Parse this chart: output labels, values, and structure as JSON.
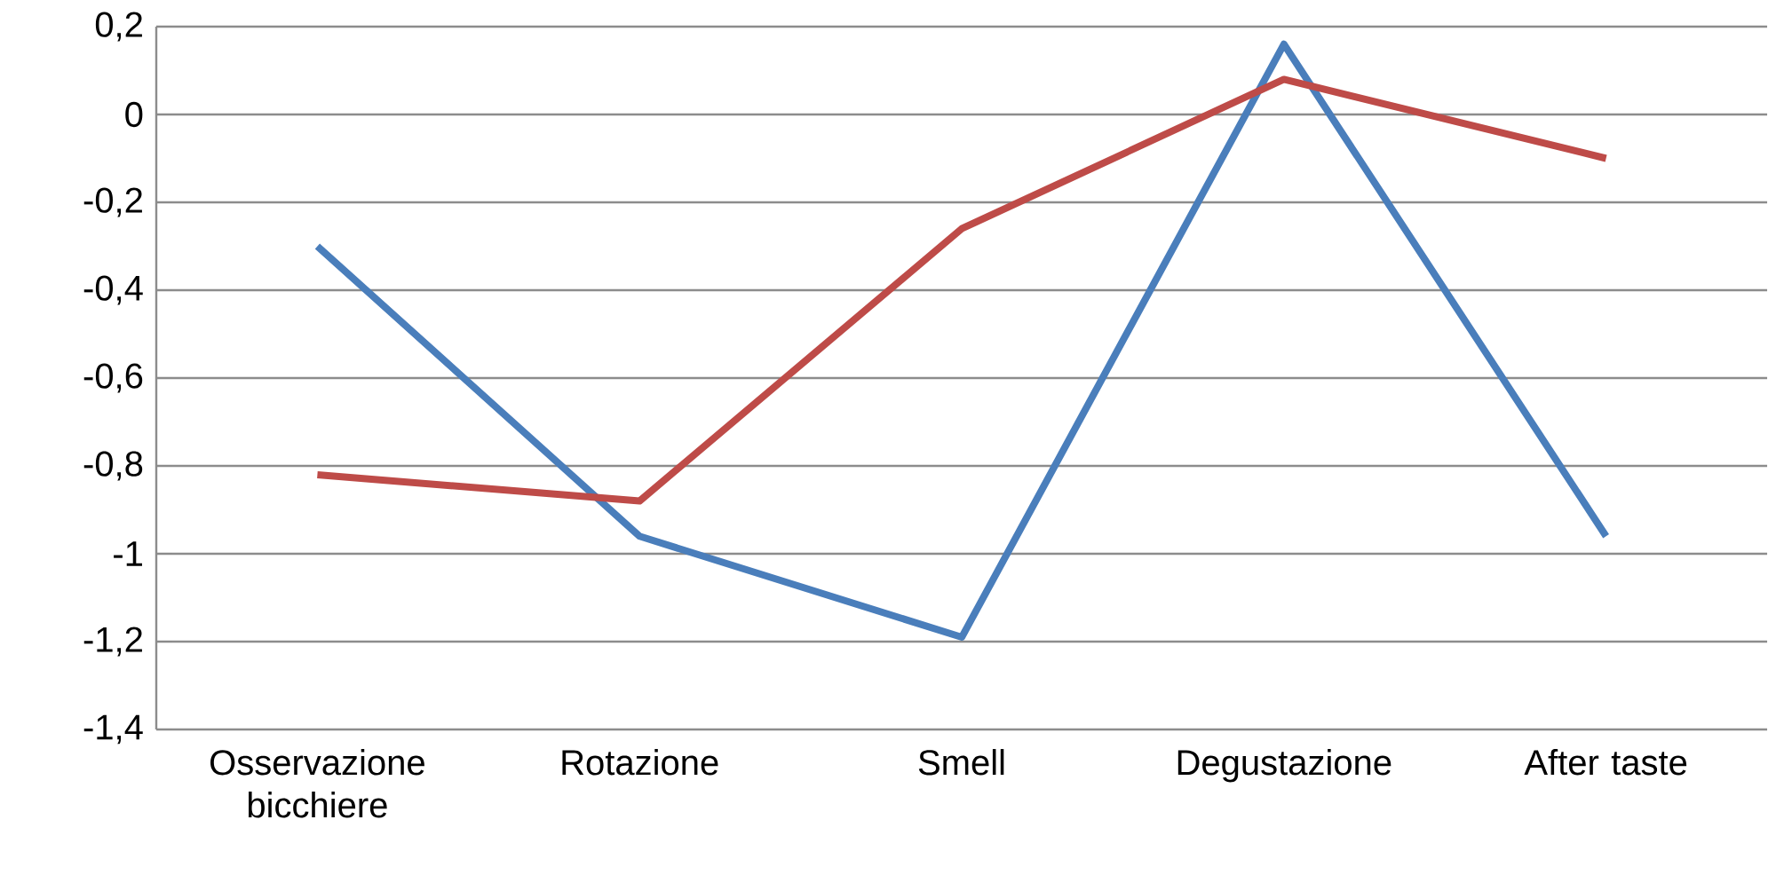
{
  "chart_data": {
    "type": "line",
    "categories": [
      "Osservazione bicchiere",
      "Rotazione",
      "Smell",
      "Degustazione",
      "After taste"
    ],
    "series": [
      {
        "color": "#4a7ebb",
        "values": [
          -0.3,
          -0.96,
          -1.19,
          0.16,
          -0.96
        ]
      },
      {
        "color": "#be4b48",
        "values": [
          -0.82,
          -0.88,
          -0.26,
          0.08,
          -0.1
        ]
      }
    ],
    "ylim": [
      -1.4,
      0.2
    ],
    "yticks": [
      {
        "value": 0.2,
        "label": "0,2"
      },
      {
        "value": 0,
        "label": "0"
      },
      {
        "value": -0.2,
        "label": "-0,2"
      },
      {
        "value": -0.4,
        "label": "-0,4"
      },
      {
        "value": -0.6,
        "label": "-0,6"
      },
      {
        "value": -0.8,
        "label": "-0,8"
      },
      {
        "value": -1,
        "label": "-1"
      },
      {
        "value": -1.2,
        "label": "-1,2"
      },
      {
        "value": -1.4,
        "label": "-1,4"
      }
    ],
    "grid": "y",
    "marker": "none",
    "line_style": "solid"
  }
}
